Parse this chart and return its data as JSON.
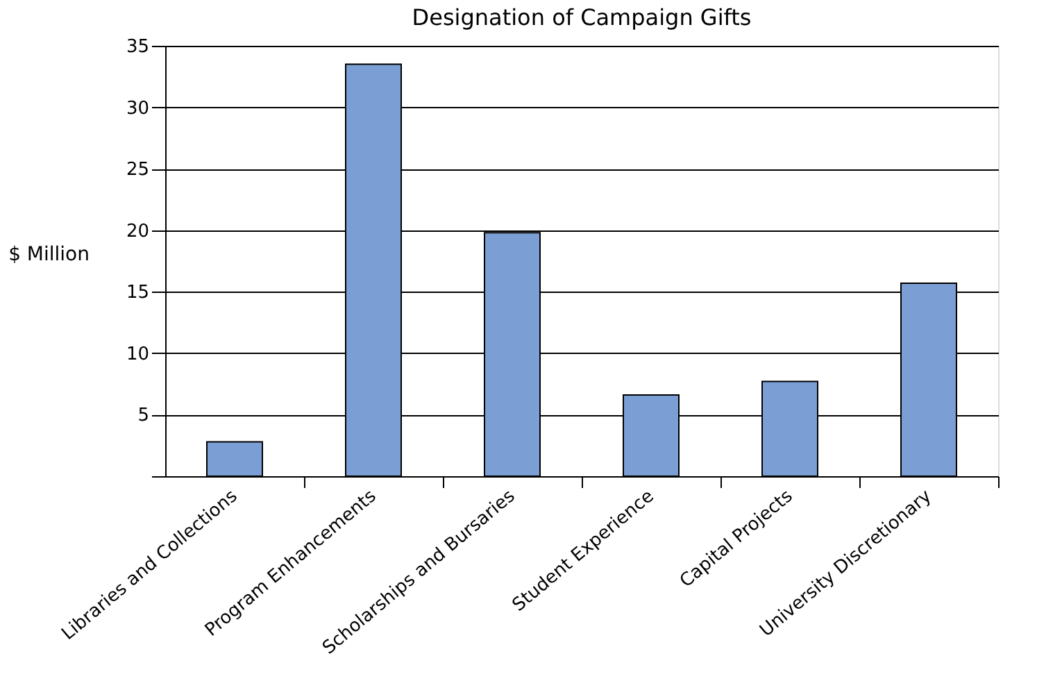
{
  "chart_data": {
    "type": "bar",
    "title": "Designation of Campaign Gifts",
    "ylabel": "$ Million",
    "categories": [
      "Libraries and Collections",
      "Program Enhancements",
      "Scholarships and Bursaries",
      "Student Experience",
      "Capital Projects",
      "University Discretionary"
    ],
    "values": [
      2.8,
      33.5,
      19.8,
      6.6,
      7.7,
      15.7
    ],
    "color": "#7b9fd4",
    "ylim": [
      0,
      35
    ],
    "yticks": [
      {
        "value": 0,
        "label": null
      },
      5,
      10,
      15,
      20,
      25,
      30,
      35
    ],
    "grid": "y"
  }
}
